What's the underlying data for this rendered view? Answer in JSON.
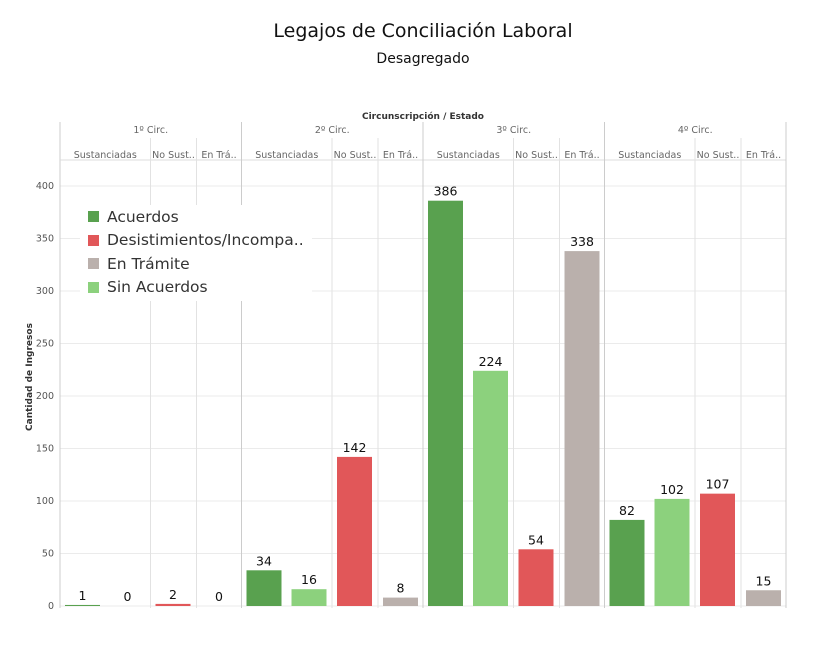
{
  "title": "Legajos de Conciliación Laboral",
  "subtitle": "Desagregado",
  "chart_data": {
    "type": "bar",
    "column_header": "Circunscripción / Estado",
    "groups": [
      "1º Circ.",
      "2º Circ.",
      "3º Circ.",
      "4º Circ."
    ],
    "subcolumns": [
      "Sustanciadas",
      "No Sust..",
      "En Trá.."
    ],
    "ylabel": "Cantidad de Ingresos",
    "ylim": [
      0,
      420
    ],
    "yticks": [
      0,
      50,
      100,
      150,
      200,
      250,
      300,
      350,
      400
    ],
    "grid": true,
    "legend_placement": "top-left",
    "series": [
      {
        "name": "Acuerdos",
        "color": "#59a14f",
        "subcolumn": "Sustanciadas",
        "values": [
          1,
          34,
          386,
          82
        ]
      },
      {
        "name": "Sin Acuerdos",
        "color": "#8cd17d",
        "subcolumn": "Sustanciadas",
        "values": [
          0,
          16,
          224,
          102
        ]
      },
      {
        "name": "Desistimientos/Incompa..",
        "color": "#e15759",
        "subcolumn": "No Sust..",
        "values": [
          2,
          142,
          54,
          107
        ]
      },
      {
        "name": "En Trámite",
        "color": "#bab0ac",
        "subcolumn": "En Trá..",
        "values": [
          0,
          8,
          338,
          15
        ]
      }
    ],
    "legend": [
      {
        "name": "Acuerdos",
        "color": "#59a14f"
      },
      {
        "name": "Desistimientos/Incompa..",
        "color": "#e15759"
      },
      {
        "name": "En Trámite",
        "color": "#bab0ac"
      },
      {
        "name": "Sin Acuerdos",
        "color": "#8cd17d"
      }
    ]
  }
}
